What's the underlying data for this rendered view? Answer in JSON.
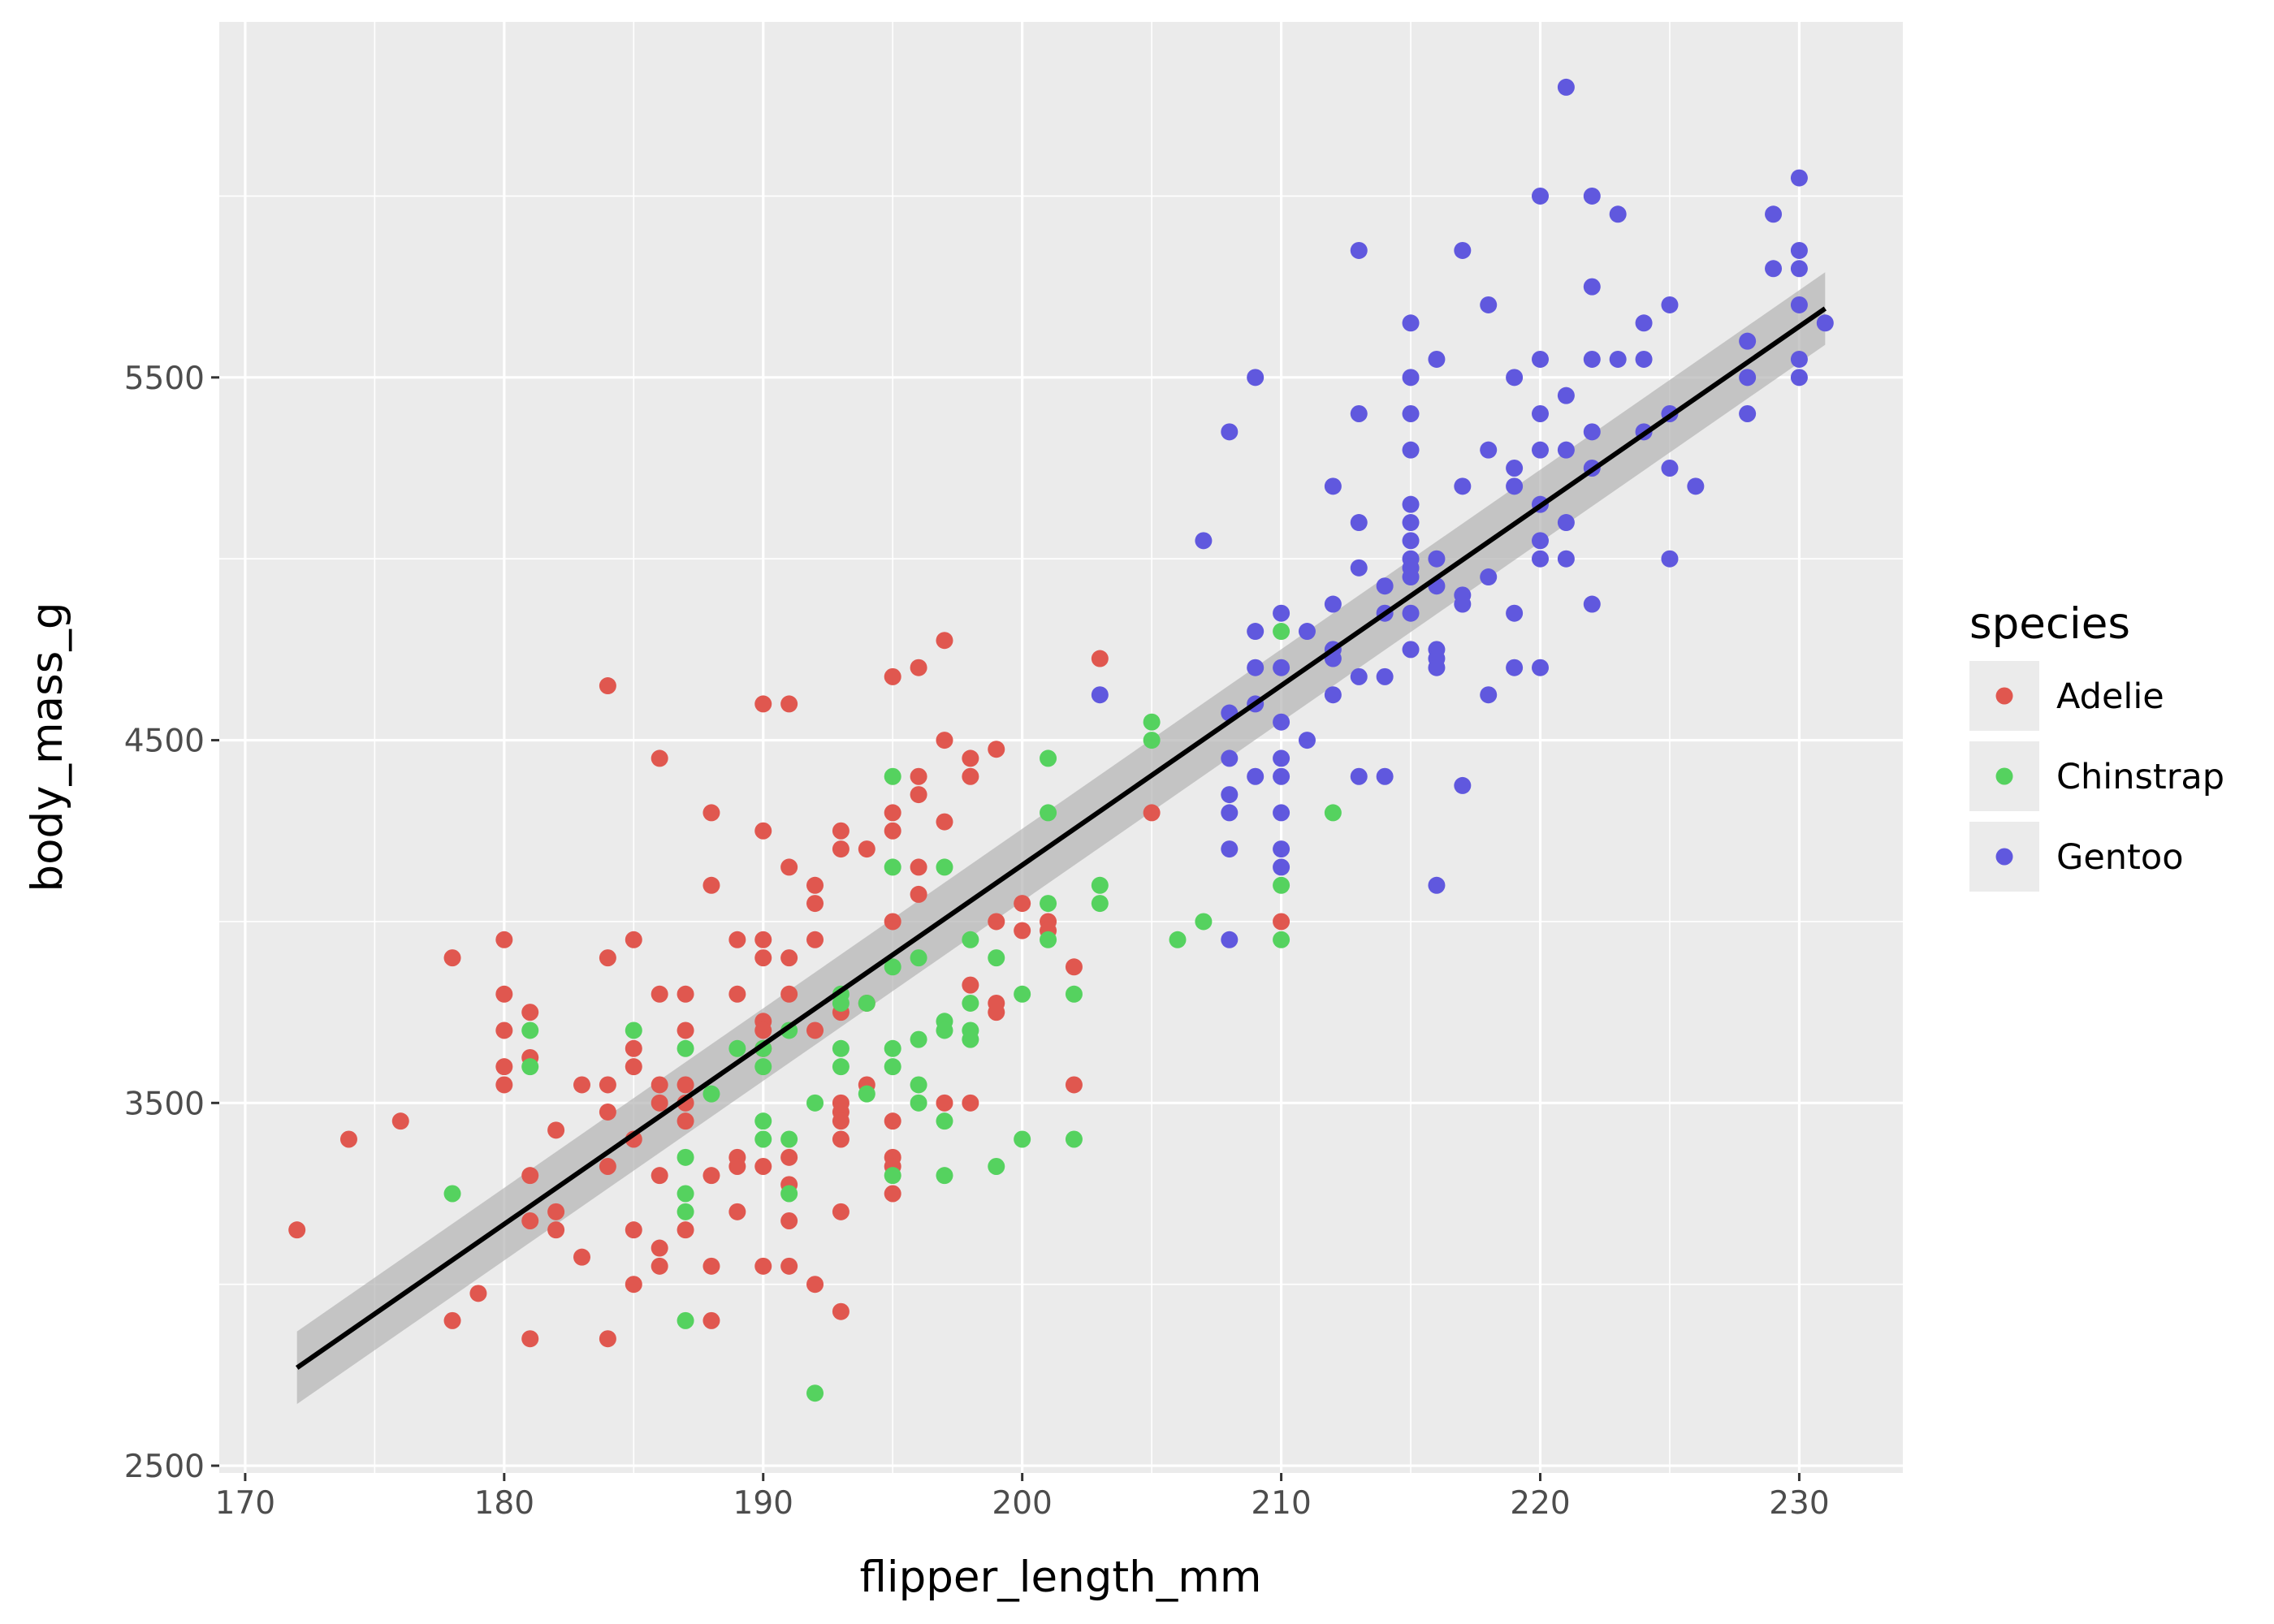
{
  "chart_data": {
    "type": "scatter",
    "xlabel": "flipper_length_mm",
    "ylabel": "body_mass_g",
    "xlim": [
      169,
      234
    ],
    "ylim": [
      2480,
      6480
    ],
    "x_ticks": [
      170,
      180,
      190,
      200,
      210,
      220,
      230
    ],
    "y_ticks": [
      2500,
      3500,
      4500,
      5500
    ],
    "x_tick_labels": [
      "170",
      "180",
      "190",
      "200",
      "210",
      "220",
      "230"
    ],
    "y_tick_labels": [
      "2500",
      "3500",
      "4500",
      "5500"
    ],
    "grid": true,
    "legend": {
      "title": "species",
      "placement": "right",
      "entries": [
        "Adelie",
        "Chinstrap",
        "Gentoo"
      ]
    },
    "series": [
      {
        "name": "Adelie",
        "color": "#e0574f",
        "points": [
          [
            172,
            3150
          ],
          [
            174,
            3400
          ],
          [
            176,
            3450
          ],
          [
            178,
            3900
          ],
          [
            178,
            2900
          ],
          [
            179,
            2975
          ],
          [
            180,
            3950
          ],
          [
            180,
            3800
          ],
          [
            180,
            3700
          ],
          [
            180,
            3600
          ],
          [
            180,
            3550
          ],
          [
            181,
            3750
          ],
          [
            181,
            3625
          ],
          [
            181,
            3300
          ],
          [
            181,
            3175
          ],
          [
            181,
            2850
          ],
          [
            182,
            3425
          ],
          [
            182,
            3200
          ],
          [
            182,
            3150
          ],
          [
            183,
            3550
          ],
          [
            183,
            3075
          ],
          [
            184,
            4650
          ],
          [
            184,
            3900
          ],
          [
            184,
            3550
          ],
          [
            184,
            3475
          ],
          [
            184,
            3325
          ],
          [
            184,
            2850
          ],
          [
            185,
            3950
          ],
          [
            185,
            3650
          ],
          [
            185,
            3600
          ],
          [
            185,
            3400
          ],
          [
            185,
            3150
          ],
          [
            185,
            3000
          ],
          [
            186,
            4450
          ],
          [
            186,
            3800
          ],
          [
            186,
            3550
          ],
          [
            186,
            3500
          ],
          [
            186,
            3300
          ],
          [
            186,
            3100
          ],
          [
            186,
            3050
          ],
          [
            187,
            3800
          ],
          [
            187,
            3700
          ],
          [
            187,
            3550
          ],
          [
            187,
            3500
          ],
          [
            187,
            3450
          ],
          [
            187,
            3150
          ],
          [
            188,
            4300
          ],
          [
            188,
            4100
          ],
          [
            188,
            3300
          ],
          [
            188,
            3050
          ],
          [
            188,
            2900
          ],
          [
            189,
            3950
          ],
          [
            189,
            3800
          ],
          [
            189,
            3350
          ],
          [
            189,
            3325
          ],
          [
            189,
            3200
          ],
          [
            190,
            4600
          ],
          [
            190,
            4250
          ],
          [
            190,
            3950
          ],
          [
            190,
            3900
          ],
          [
            190,
            3725
          ],
          [
            190,
            3700
          ],
          [
            190,
            3650
          ],
          [
            190,
            3325
          ],
          [
            190,
            3050
          ],
          [
            191,
            4600
          ],
          [
            191,
            4150
          ],
          [
            191,
            3900
          ],
          [
            191,
            3800
          ],
          [
            191,
            3350
          ],
          [
            191,
            3275
          ],
          [
            191,
            3175
          ],
          [
            191,
            3050
          ],
          [
            192,
            4100
          ],
          [
            192,
            4050
          ],
          [
            192,
            3950
          ],
          [
            192,
            3700
          ],
          [
            192,
            3000
          ],
          [
            193,
            4250
          ],
          [
            193,
            4200
          ],
          [
            193,
            3750
          ],
          [
            193,
            3500
          ],
          [
            193,
            3475
          ],
          [
            193,
            3450
          ],
          [
            193,
            3400
          ],
          [
            193,
            3200
          ],
          [
            193,
            2925
          ],
          [
            194,
            4200
          ],
          [
            194,
            3775
          ],
          [
            194,
            3550
          ],
          [
            195,
            4675
          ],
          [
            195,
            4300
          ],
          [
            195,
            4250
          ],
          [
            195,
            4000
          ],
          [
            195,
            3450
          ],
          [
            195,
            3350
          ],
          [
            195,
            3325
          ],
          [
            195,
            3250
          ],
          [
            196,
            4700
          ],
          [
            196,
            4400
          ],
          [
            196,
            4350
          ],
          [
            196,
            4150
          ],
          [
            196,
            4075
          ],
          [
            197,
            4775
          ],
          [
            197,
            4500
          ],
          [
            197,
            4275
          ],
          [
            197,
            3500
          ],
          [
            198,
            4450
          ],
          [
            198,
            4400
          ],
          [
            198,
            3825
          ],
          [
            198,
            3500
          ],
          [
            199,
            4475
          ],
          [
            199,
            4000
          ],
          [
            199,
            3775
          ],
          [
            199,
            3750
          ],
          [
            200,
            4050
          ],
          [
            200,
            3975
          ],
          [
            201,
            4000
          ],
          [
            201,
            3975
          ],
          [
            202,
            3875
          ],
          [
            202,
            3550
          ],
          [
            203,
            4725
          ],
          [
            205,
            4300
          ],
          [
            210,
            4000
          ]
        ]
      },
      {
        "name": "Chinstrap",
        "color": "#55d25f",
        "points": [
          [
            178,
            3250
          ],
          [
            181,
            3700
          ],
          [
            181,
            3600
          ],
          [
            185,
            3700
          ],
          [
            187,
            3650
          ],
          [
            187,
            3350
          ],
          [
            187,
            3250
          ],
          [
            187,
            3200
          ],
          [
            187,
            2900
          ],
          [
            188,
            3525
          ],
          [
            189,
            3650
          ],
          [
            190,
            3600
          ],
          [
            190,
            3450
          ],
          [
            190,
            3400
          ],
          [
            190,
            3650
          ],
          [
            191,
            3700
          ],
          [
            191,
            3400
          ],
          [
            191,
            3250
          ],
          [
            192,
            3500
          ],
          [
            192,
            2700
          ],
          [
            193,
            3800
          ],
          [
            193,
            3775
          ],
          [
            193,
            3650
          ],
          [
            193,
            3600
          ],
          [
            194,
            3775
          ],
          [
            194,
            3525
          ],
          [
            195,
            4400
          ],
          [
            195,
            4150
          ],
          [
            195,
            3875
          ],
          [
            195,
            3650
          ],
          [
            195,
            3600
          ],
          [
            195,
            3300
          ],
          [
            196,
            3900
          ],
          [
            196,
            3675
          ],
          [
            196,
            3550
          ],
          [
            196,
            3500
          ],
          [
            197,
            4150
          ],
          [
            197,
            3725
          ],
          [
            197,
            3700
          ],
          [
            197,
            3450
          ],
          [
            197,
            3300
          ],
          [
            198,
            3950
          ],
          [
            198,
            3775
          ],
          [
            198,
            3700
          ],
          [
            198,
            3675
          ],
          [
            199,
            3900
          ],
          [
            199,
            3325
          ],
          [
            200,
            3800
          ],
          [
            200,
            3400
          ],
          [
            201,
            4450
          ],
          [
            201,
            4300
          ],
          [
            201,
            4050
          ],
          [
            201,
            3950
          ],
          [
            202,
            3800
          ],
          [
            202,
            3400
          ],
          [
            203,
            4100
          ],
          [
            203,
            4050
          ],
          [
            205,
            4550
          ],
          [
            205,
            4500
          ],
          [
            206,
            3950
          ],
          [
            207,
            4000
          ],
          [
            210,
            4800
          ],
          [
            210,
            4100
          ],
          [
            210,
            3950
          ],
          [
            212,
            4300
          ]
        ]
      },
      {
        "name": "Gentoo",
        "color": "#6058de",
        "points": [
          [
            203,
            4625
          ],
          [
            207,
            5050
          ],
          [
            208,
            5350
          ],
          [
            208,
            4575
          ],
          [
            208,
            4450
          ],
          [
            208,
            4350
          ],
          [
            208,
            4300
          ],
          [
            208,
            4200
          ],
          [
            208,
            3950
          ],
          [
            209,
            5500
          ],
          [
            209,
            4800
          ],
          [
            209,
            4700
          ],
          [
            209,
            4600
          ],
          [
            209,
            4400
          ],
          [
            210,
            4850
          ],
          [
            210,
            4700
          ],
          [
            210,
            4550
          ],
          [
            210,
            4450
          ],
          [
            210,
            4400
          ],
          [
            210,
            4300
          ],
          [
            210,
            4200
          ],
          [
            210,
            4150
          ],
          [
            211,
            4800
          ],
          [
            211,
            4500
          ],
          [
            212,
            5200
          ],
          [
            212,
            4875
          ],
          [
            212,
            4750
          ],
          [
            212,
            4725
          ],
          [
            212,
            4625
          ],
          [
            213,
            5850
          ],
          [
            213,
            5400
          ],
          [
            213,
            5100
          ],
          [
            213,
            4975
          ],
          [
            213,
            4675
          ],
          [
            213,
            4400
          ],
          [
            214,
            4925
          ],
          [
            214,
            4850
          ],
          [
            214,
            4675
          ],
          [
            214,
            4400
          ],
          [
            215,
            5650
          ],
          [
            215,
            5500
          ],
          [
            215,
            5400
          ],
          [
            215,
            5300
          ],
          [
            215,
            5150
          ],
          [
            215,
            5100
          ],
          [
            215,
            5050
          ],
          [
            215,
            5000
          ],
          [
            215,
            4975
          ],
          [
            215,
            4950
          ],
          [
            215,
            4850
          ],
          [
            215,
            4750
          ],
          [
            216,
            5550
          ],
          [
            216,
            5000
          ],
          [
            216,
            4925
          ],
          [
            216,
            4750
          ],
          [
            216,
            4725
          ],
          [
            216,
            4700
          ],
          [
            216,
            4100
          ],
          [
            217,
            5850
          ],
          [
            217,
            5200
          ],
          [
            217,
            4900
          ],
          [
            217,
            4875
          ],
          [
            217,
            4375
          ],
          [
            218,
            5700
          ],
          [
            218,
            5300
          ],
          [
            218,
            4950
          ],
          [
            218,
            4625
          ],
          [
            219,
            5500
          ],
          [
            219,
            5250
          ],
          [
            219,
            5200
          ],
          [
            219,
            4850
          ],
          [
            219,
            4700
          ],
          [
            220,
            6000
          ],
          [
            220,
            5550
          ],
          [
            220,
            5400
          ],
          [
            220,
            5300
          ],
          [
            220,
            5150
          ],
          [
            220,
            5050
          ],
          [
            220,
            5000
          ],
          [
            220,
            4700
          ],
          [
            221,
            6300
          ],
          [
            221,
            5450
          ],
          [
            221,
            5300
          ],
          [
            221,
            5100
          ],
          [
            221,
            5000
          ],
          [
            222,
            6000
          ],
          [
            222,
            5750
          ],
          [
            222,
            5550
          ],
          [
            222,
            5350
          ],
          [
            222,
            5250
          ],
          [
            222,
            4875
          ],
          [
            223,
            5950
          ],
          [
            223,
            5550
          ],
          [
            224,
            5650
          ],
          [
            224,
            5550
          ],
          [
            224,
            5350
          ],
          [
            225,
            5700
          ],
          [
            225,
            5400
          ],
          [
            225,
            5250
          ],
          [
            225,
            5000
          ],
          [
            226,
            5200
          ],
          [
            228,
            5600
          ],
          [
            228,
            5500
          ],
          [
            228,
            5400
          ],
          [
            229,
            5950
          ],
          [
            229,
            5800
          ],
          [
            230,
            6050
          ],
          [
            230,
            5850
          ],
          [
            230,
            5800
          ],
          [
            230,
            5700
          ],
          [
            230,
            5550
          ],
          [
            230,
            5500
          ],
          [
            231,
            5650
          ]
        ]
      }
    ],
    "fit": {
      "type": "linear",
      "color": "#000000",
      "band_color": "#b3b3b3",
      "line": [
        [
          172,
          2770
        ],
        [
          231,
          5690
        ]
      ],
      "band_lower": [
        [
          172,
          2670
        ],
        [
          231,
          5590
        ]
      ],
      "band_upper": [
        [
          172,
          2870
        ],
        [
          231,
          5790
        ]
      ]
    }
  }
}
